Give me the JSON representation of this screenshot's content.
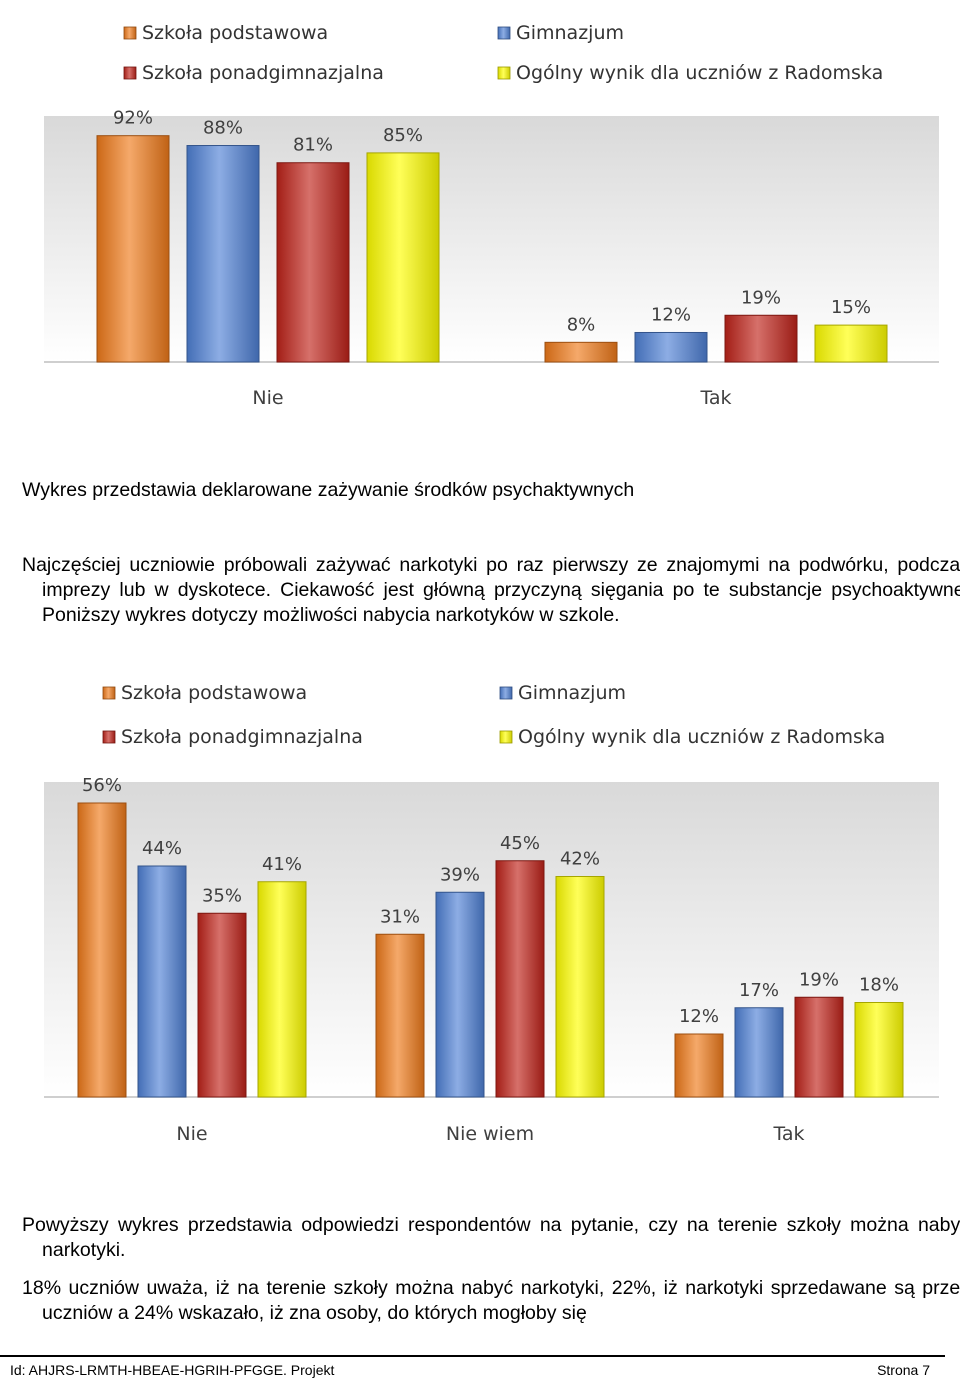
{
  "legend": {
    "items": [
      {
        "label": "Szkoła podstawowa",
        "color": "#F07A1A"
      },
      {
        "label": "Gimnazjum",
        "color": "#4F81D6"
      },
      {
        "label": "Szkoła ponadgimnazjalna",
        "color": "#C0231A"
      },
      {
        "label": "Ogólny wynik dla uczniów z Radomska",
        "color": "#FFFF00"
      }
    ]
  },
  "chart_data": [
    {
      "type": "bar",
      "categories": [
        "Nie",
        "Tak"
      ],
      "series": [
        {
          "name": "Szkoła podstawowa",
          "values": [
            92,
            8
          ]
        },
        {
          "name": "Gimnazjum",
          "values": [
            88,
            12
          ]
        },
        {
          "name": "Szkoła ponadgimnazjalna",
          "values": [
            81,
            19
          ]
        },
        {
          "name": "Ogólny wynik dla uczniów z Radomska",
          "values": [
            85,
            15
          ]
        }
      ],
      "unit": "%",
      "ylim": [
        0,
        100
      ],
      "legend_position": "top",
      "grid": false
    },
    {
      "type": "bar",
      "categories": [
        "Nie",
        "Nie wiem",
        "Tak"
      ],
      "series": [
        {
          "name": "Szkoła podstawowa",
          "values": [
            56,
            31,
            12
          ]
        },
        {
          "name": "Gimnazjum",
          "values": [
            44,
            39,
            17
          ]
        },
        {
          "name": "Szkoła ponadgimnazjalna",
          "values": [
            35,
            45,
            19
          ]
        },
        {
          "name": "Ogólny wynik dla uczniów z Radomska",
          "values": [
            41,
            42,
            18
          ]
        }
      ],
      "unit": "%",
      "ylim": [
        0,
        60
      ],
      "legend_position": "top",
      "grid": false
    }
  ],
  "text": {
    "caption1": "Wykres przedstawia deklarowane zażywanie środków psychaktywnych",
    "para1": "Najczęściej uczniowie próbowali zażywać narkotyki po raz pierwszy ze znajomymi na podwórku, podczas imprezy lub w dyskotece. Ciekawość jest główną przyczyną sięgania po te substancje psychoaktywne. Poniższy wykres dotyczy możliwości nabycia narkotyków w szkole.",
    "para2": "Powyższy wykres przedstawia odpowiedzi respondentów na pytanie, czy na terenie szkoły można nabyć narkotyki.",
    "para3": "18% uczniów uważa, iż na terenie szkoły można nabyć narkotyki, 22%, iż narkotyki sprzedawane są przez uczniów a 24% wskazało, iż zna osoby, do których mogłoby się"
  },
  "footer": {
    "id_text": "Id: AHJRS-LRMTH-HBEAE-HGRIH-PFGGE. Projekt",
    "page_text": "Strona 7"
  }
}
